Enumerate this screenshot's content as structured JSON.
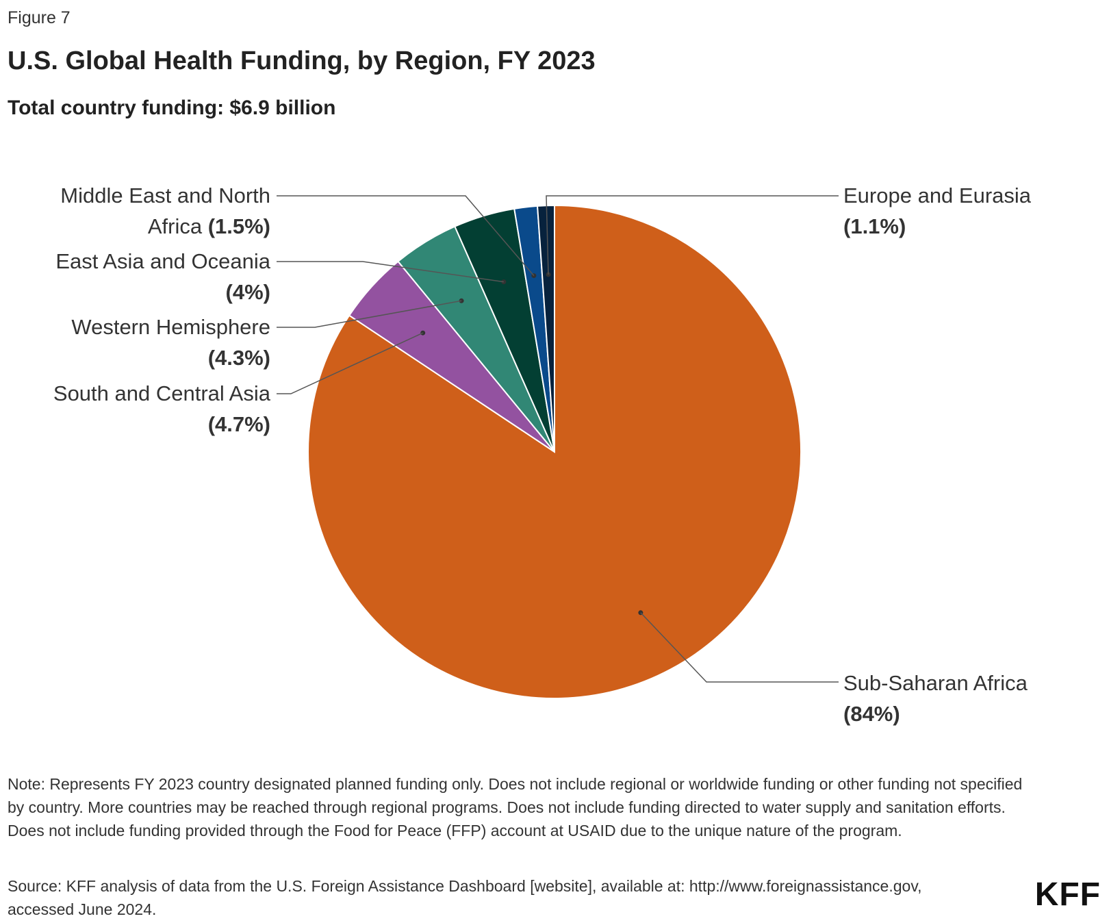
{
  "figure_label": "Figure 7",
  "chart_data": {
    "type": "pie",
    "title": "U.S. Global Health Funding, by Region, FY 2023",
    "subtitle": "Total country funding: $6.9 billion",
    "start_angle_deg": 0,
    "direction": "clockwise",
    "slices": [
      {
        "name": "Sub-Saharan Africa",
        "value": 84,
        "pct_label": "(84%)",
        "color": "#cf5f1a",
        "label_lines": [
          "Sub-Saharan Africa"
        ],
        "pct_inline": false,
        "side": "right"
      },
      {
        "name": "South and Central Asia",
        "value": 4.7,
        "pct_label": "(4.7%)",
        "color": "#9352a0",
        "label_lines": [
          "South and Central Asia"
        ],
        "pct_inline": false,
        "side": "left"
      },
      {
        "name": "Western Hemisphere",
        "value": 4.3,
        "pct_label": "(4.3%)",
        "color": "#318775",
        "label_lines": [
          "Western Hemisphere"
        ],
        "pct_inline": false,
        "side": "left"
      },
      {
        "name": "East Asia and Oceania",
        "value": 4,
        "pct_label": "(4%)",
        "color": "#033f33",
        "label_lines": [
          "East Asia and Oceania"
        ],
        "pct_inline": false,
        "side": "left"
      },
      {
        "name": "Middle East and North Africa",
        "value": 1.5,
        "pct_label": "(1.5%)",
        "color": "#0a4a8b",
        "label_lines": [
          "Middle East and North",
          "Africa"
        ],
        "pct_inline": true,
        "side": "left"
      },
      {
        "name": "Europe and Eurasia",
        "value": 1.1,
        "pct_label": "(1.1%)",
        "color": "#07223d",
        "label_lines": [
          "Europe and Eurasia"
        ],
        "pct_inline": false,
        "side": "right"
      }
    ]
  },
  "note": "Note: Represents FY 2023 country designated planned funding only. Does not include regional or worldwide funding or other funding not specified by country. More countries may be reached through regional programs. Does not include funding directed to water supply and sanitation efforts. Does not include funding provided through the Food for Peace (FFP) account at USAID due to the unique nature of the program.",
  "source": "Source: KFF analysis of data from the U.S. Foreign Assistance Dashboard [website], available at: http://www.foreignassistance.gov, accessed June 2024.",
  "logo": "KFF"
}
